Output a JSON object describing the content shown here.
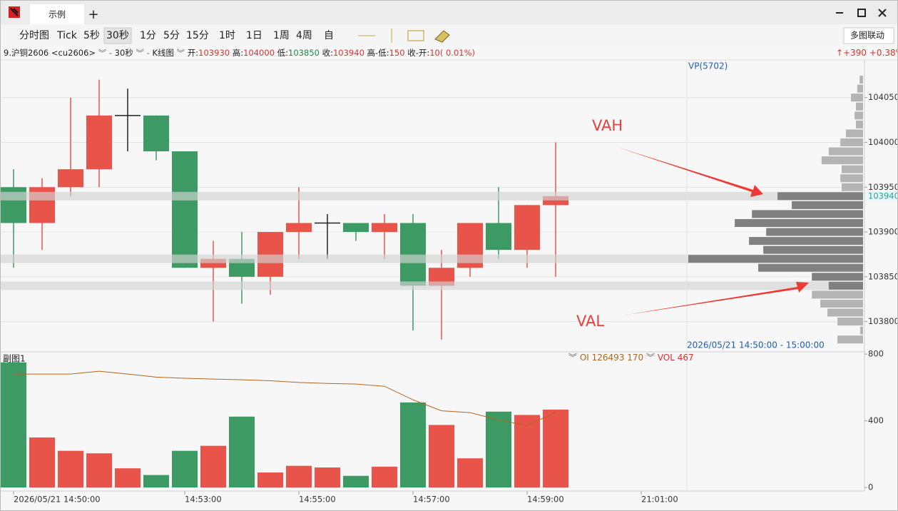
{
  "window": {
    "tab": "示例",
    "add": "+"
  },
  "toolbar": {
    "periods": [
      "分时图",
      "Tick",
      "5秒",
      "30秒",
      "1分",
      "5分",
      "15分",
      "1时",
      "1日",
      "1周",
      "4周",
      "自"
    ],
    "selected": "30秒",
    "sync": "多图联动"
  },
  "info": {
    "symbol": "9.沪铜2606 <cu2606>",
    "period": "30秒",
    "chart_kind": "K线图",
    "fields": [
      {
        "label": "开:",
        "value": 103930,
        "color": "#e0302c"
      },
      {
        "label": "高:",
        "value": 104000,
        "color": "#e0302c"
      },
      {
        "label": "低:",
        "value": 103850,
        "color": "#1c8a4a"
      },
      {
        "label": "收:",
        "value": 103940,
        "color": "#e0302c"
      },
      {
        "label": "高-低:",
        "value": 150,
        "color": "#e0302c"
      },
      {
        "label": "收-开:",
        "value": "10( 0.01%)",
        "color": "#e0302c"
      }
    ],
    "change": "↑+390",
    "change_pct": "+0.38%"
  },
  "chart_data": [
    {
      "type": "candlestick",
      "up_color": "#e8534a",
      "down_color": "#3d9a64",
      "doji_color": "#222222",
      "open": [
        103950,
        103910,
        103950,
        103970,
        104030,
        104030,
        103990,
        103860,
        103870,
        103850,
        103900,
        103910,
        103910,
        103900,
        103910,
        103840,
        103860,
        103910,
        103880,
        103930
      ],
      "high": [
        103970,
        103960,
        104050,
        104070,
        104060,
        104030,
        103990,
        103890,
        103900,
        103900,
        103950,
        103920,
        103910,
        103920,
        103920,
        103880,
        103910,
        103950,
        103930,
        104000
      ],
      "low": [
        103860,
        103880,
        103940,
        103950,
        103990,
        103980,
        103860,
        103800,
        103820,
        103830,
        103870,
        103870,
        103890,
        103870,
        103790,
        103780,
        103850,
        103870,
        103860,
        103850
      ],
      "close": [
        103910,
        103950,
        103970,
        104030,
        104030,
        103990,
        103860,
        103870,
        103850,
        103900,
        103910,
        103910,
        103900,
        103910,
        103840,
        103860,
        103910,
        103880,
        103930,
        103940
      ],
      "ylim": [
        103767,
        104092
      ],
      "yticks": [
        103800,
        103850,
        103900,
        103950,
        104000,
        104050
      ],
      "xticks": [
        {
          "value": 0,
          "label": "2026/05/21 14:50:00"
        },
        {
          "value": 6,
          "label": "14:53:00"
        },
        {
          "value": 10,
          "label": "14:55:00"
        },
        {
          "value": 14,
          "label": "14:57:00"
        },
        {
          "value": 18,
          "label": "14:59:00"
        },
        {
          "value": 22,
          "label": "21:01:00"
        }
      ],
      "last_price": 103940,
      "vah": 103940,
      "poc": 103870,
      "val": 103840,
      "volume_profile": {
        "label": "VP(5702)",
        "range": "2026/05/21 14:50:00 - 15:00:00",
        "levels": [
          104070,
          104060,
          104050,
          104040,
          104030,
          104020,
          104010,
          104000,
          103990,
          103980,
          103970,
          103960,
          103950,
          103940,
          103930,
          103920,
          103910,
          103900,
          103890,
          103880,
          103870,
          103860,
          103850,
          103840,
          103830,
          103820,
          103810,
          103800,
          103790,
          103780
        ],
        "volumes": [
          13,
          22,
          46,
          27,
          32,
          27,
          65,
          86,
          130,
          157,
          81,
          86,
          81,
          324,
          270,
          421,
          486,
          367,
          432,
          378,
          662,
          397,
          194,
          130,
          194,
          162,
          135,
          97,
          11,
          97
        ]
      },
      "annotations": [
        "VAH",
        "VAL"
      ]
    },
    {
      "type": "bar",
      "title": "副图1",
      "ylim": [
        -21,
        809
      ],
      "yticks": [
        0,
        400,
        800
      ],
      "series": [
        {
          "name": "VOL",
          "values": [
            750,
            300,
            220,
            205,
            115,
            75,
            220,
            250,
            425,
            90,
            130,
            120,
            70,
            125,
            510,
            375,
            175,
            455,
            435,
            467
          ]
        },
        {
          "name": "OI",
          "legend_value": "126493 170",
          "color": "#b5651d",
          "values": [
            680,
            680,
            680,
            697,
            680,
            662,
            655,
            650,
            646,
            640,
            630,
            624,
            620,
            607,
            526,
            460,
            449,
            405,
            372,
            450
          ]
        }
      ]
    }
  ]
}
